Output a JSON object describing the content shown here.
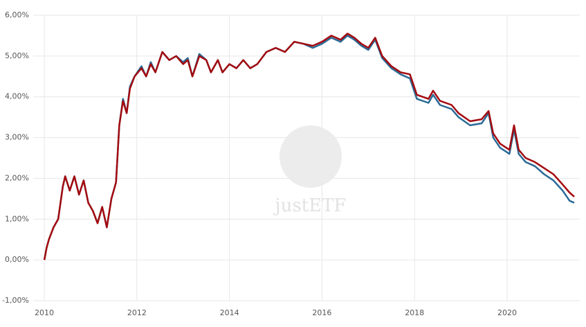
{
  "chart_data": {
    "type": "line",
    "watermark": "justETF",
    "x": [
      2010.0,
      2010.05,
      2010.1,
      2010.2,
      2010.3,
      2010.4,
      2010.45,
      2010.55,
      2010.65,
      2010.75,
      2010.85,
      2010.95,
      2011.05,
      2011.15,
      2011.25,
      2011.35,
      2011.45,
      2011.55,
      2011.62,
      2011.7,
      2011.78,
      2011.85,
      2011.95,
      2012.1,
      2012.2,
      2012.3,
      2012.4,
      2012.55,
      2012.7,
      2012.85,
      2013.0,
      2013.1,
      2013.2,
      2013.35,
      2013.5,
      2013.6,
      2013.75,
      2013.85,
      2014.0,
      2014.15,
      2014.3,
      2014.45,
      2014.6,
      2014.8,
      2015.0,
      2015.2,
      2015.4,
      2015.6,
      2015.8,
      2016.0,
      2016.2,
      2016.4,
      2016.55,
      2016.7,
      2016.85,
      2017.0,
      2017.15,
      2017.3,
      2017.5,
      2017.7,
      2017.9,
      2018.05,
      2018.3,
      2018.4,
      2018.55,
      2018.8,
      2018.95,
      2019.2,
      2019.45,
      2019.6,
      2019.7,
      2019.85,
      2020.05,
      2020.15,
      2020.25,
      2020.4,
      2020.6,
      2020.8,
      2021.0,
      2021.2,
      2021.35,
      2021.45
    ],
    "series": [
      {
        "color": "#2a6a96",
        "values": [
          0.0,
          0.3,
          0.5,
          0.8,
          1.0,
          1.8,
          2.05,
          1.7,
          2.05,
          1.6,
          1.95,
          1.4,
          1.2,
          0.9,
          1.3,
          0.8,
          1.5,
          1.9,
          3.3,
          3.95,
          3.6,
          4.25,
          4.5,
          4.75,
          4.5,
          4.85,
          4.6,
          5.1,
          4.9,
          5.0,
          4.85,
          4.95,
          4.5,
          5.05,
          4.9,
          4.6,
          4.9,
          4.6,
          4.8,
          4.7,
          4.9,
          4.7,
          4.8,
          5.1,
          5.2,
          5.1,
          5.35,
          5.3,
          5.2,
          5.3,
          5.45,
          5.35,
          5.5,
          5.4,
          5.25,
          5.15,
          5.4,
          4.95,
          4.7,
          4.55,
          4.45,
          3.95,
          3.85,
          4.05,
          3.8,
          3.7,
          3.5,
          3.3,
          3.35,
          3.6,
          3.0,
          2.75,
          2.6,
          3.2,
          2.6,
          2.4,
          2.3,
          2.1,
          1.95,
          1.7,
          1.45,
          1.4
        ]
      },
      {
        "color": "#a30a0f",
        "values": [
          0.0,
          0.3,
          0.5,
          0.8,
          1.0,
          1.8,
          2.05,
          1.7,
          2.05,
          1.6,
          1.95,
          1.4,
          1.2,
          0.9,
          1.3,
          0.8,
          1.5,
          1.9,
          3.3,
          3.9,
          3.6,
          4.2,
          4.5,
          4.7,
          4.5,
          4.8,
          4.6,
          5.1,
          4.9,
          5.0,
          4.8,
          4.9,
          4.5,
          5.0,
          4.9,
          4.6,
          4.9,
          4.6,
          4.8,
          4.7,
          4.9,
          4.7,
          4.8,
          5.1,
          5.2,
          5.1,
          5.35,
          5.3,
          5.25,
          5.35,
          5.5,
          5.4,
          5.55,
          5.45,
          5.3,
          5.2,
          5.45,
          5.0,
          4.75,
          4.6,
          4.55,
          4.05,
          3.95,
          4.15,
          3.9,
          3.8,
          3.6,
          3.4,
          3.45,
          3.65,
          3.1,
          2.85,
          2.7,
          3.3,
          2.7,
          2.5,
          2.4,
          2.25,
          2.1,
          1.85,
          1.65,
          1.55
        ]
      }
    ],
    "xlim": [
      2009.76,
      2021.57
    ],
    "xticks": [
      2010,
      2012,
      2014,
      2016,
      2018,
      2020
    ],
    "ylim": [
      -1,
      6
    ],
    "yticks": [
      {
        "value": -1,
        "label": "-1,00%"
      },
      {
        "value": 0,
        "label": "0,00%"
      },
      {
        "value": 1,
        "label": "1,00%"
      },
      {
        "value": 2,
        "label": "2,00%"
      },
      {
        "value": 3,
        "label": "3,00%"
      },
      {
        "value": 4,
        "label": "4,00%"
      },
      {
        "value": 5,
        "label": "5,00%"
      },
      {
        "value": 6,
        "label": "6,00%"
      }
    ],
    "grid": true
  }
}
